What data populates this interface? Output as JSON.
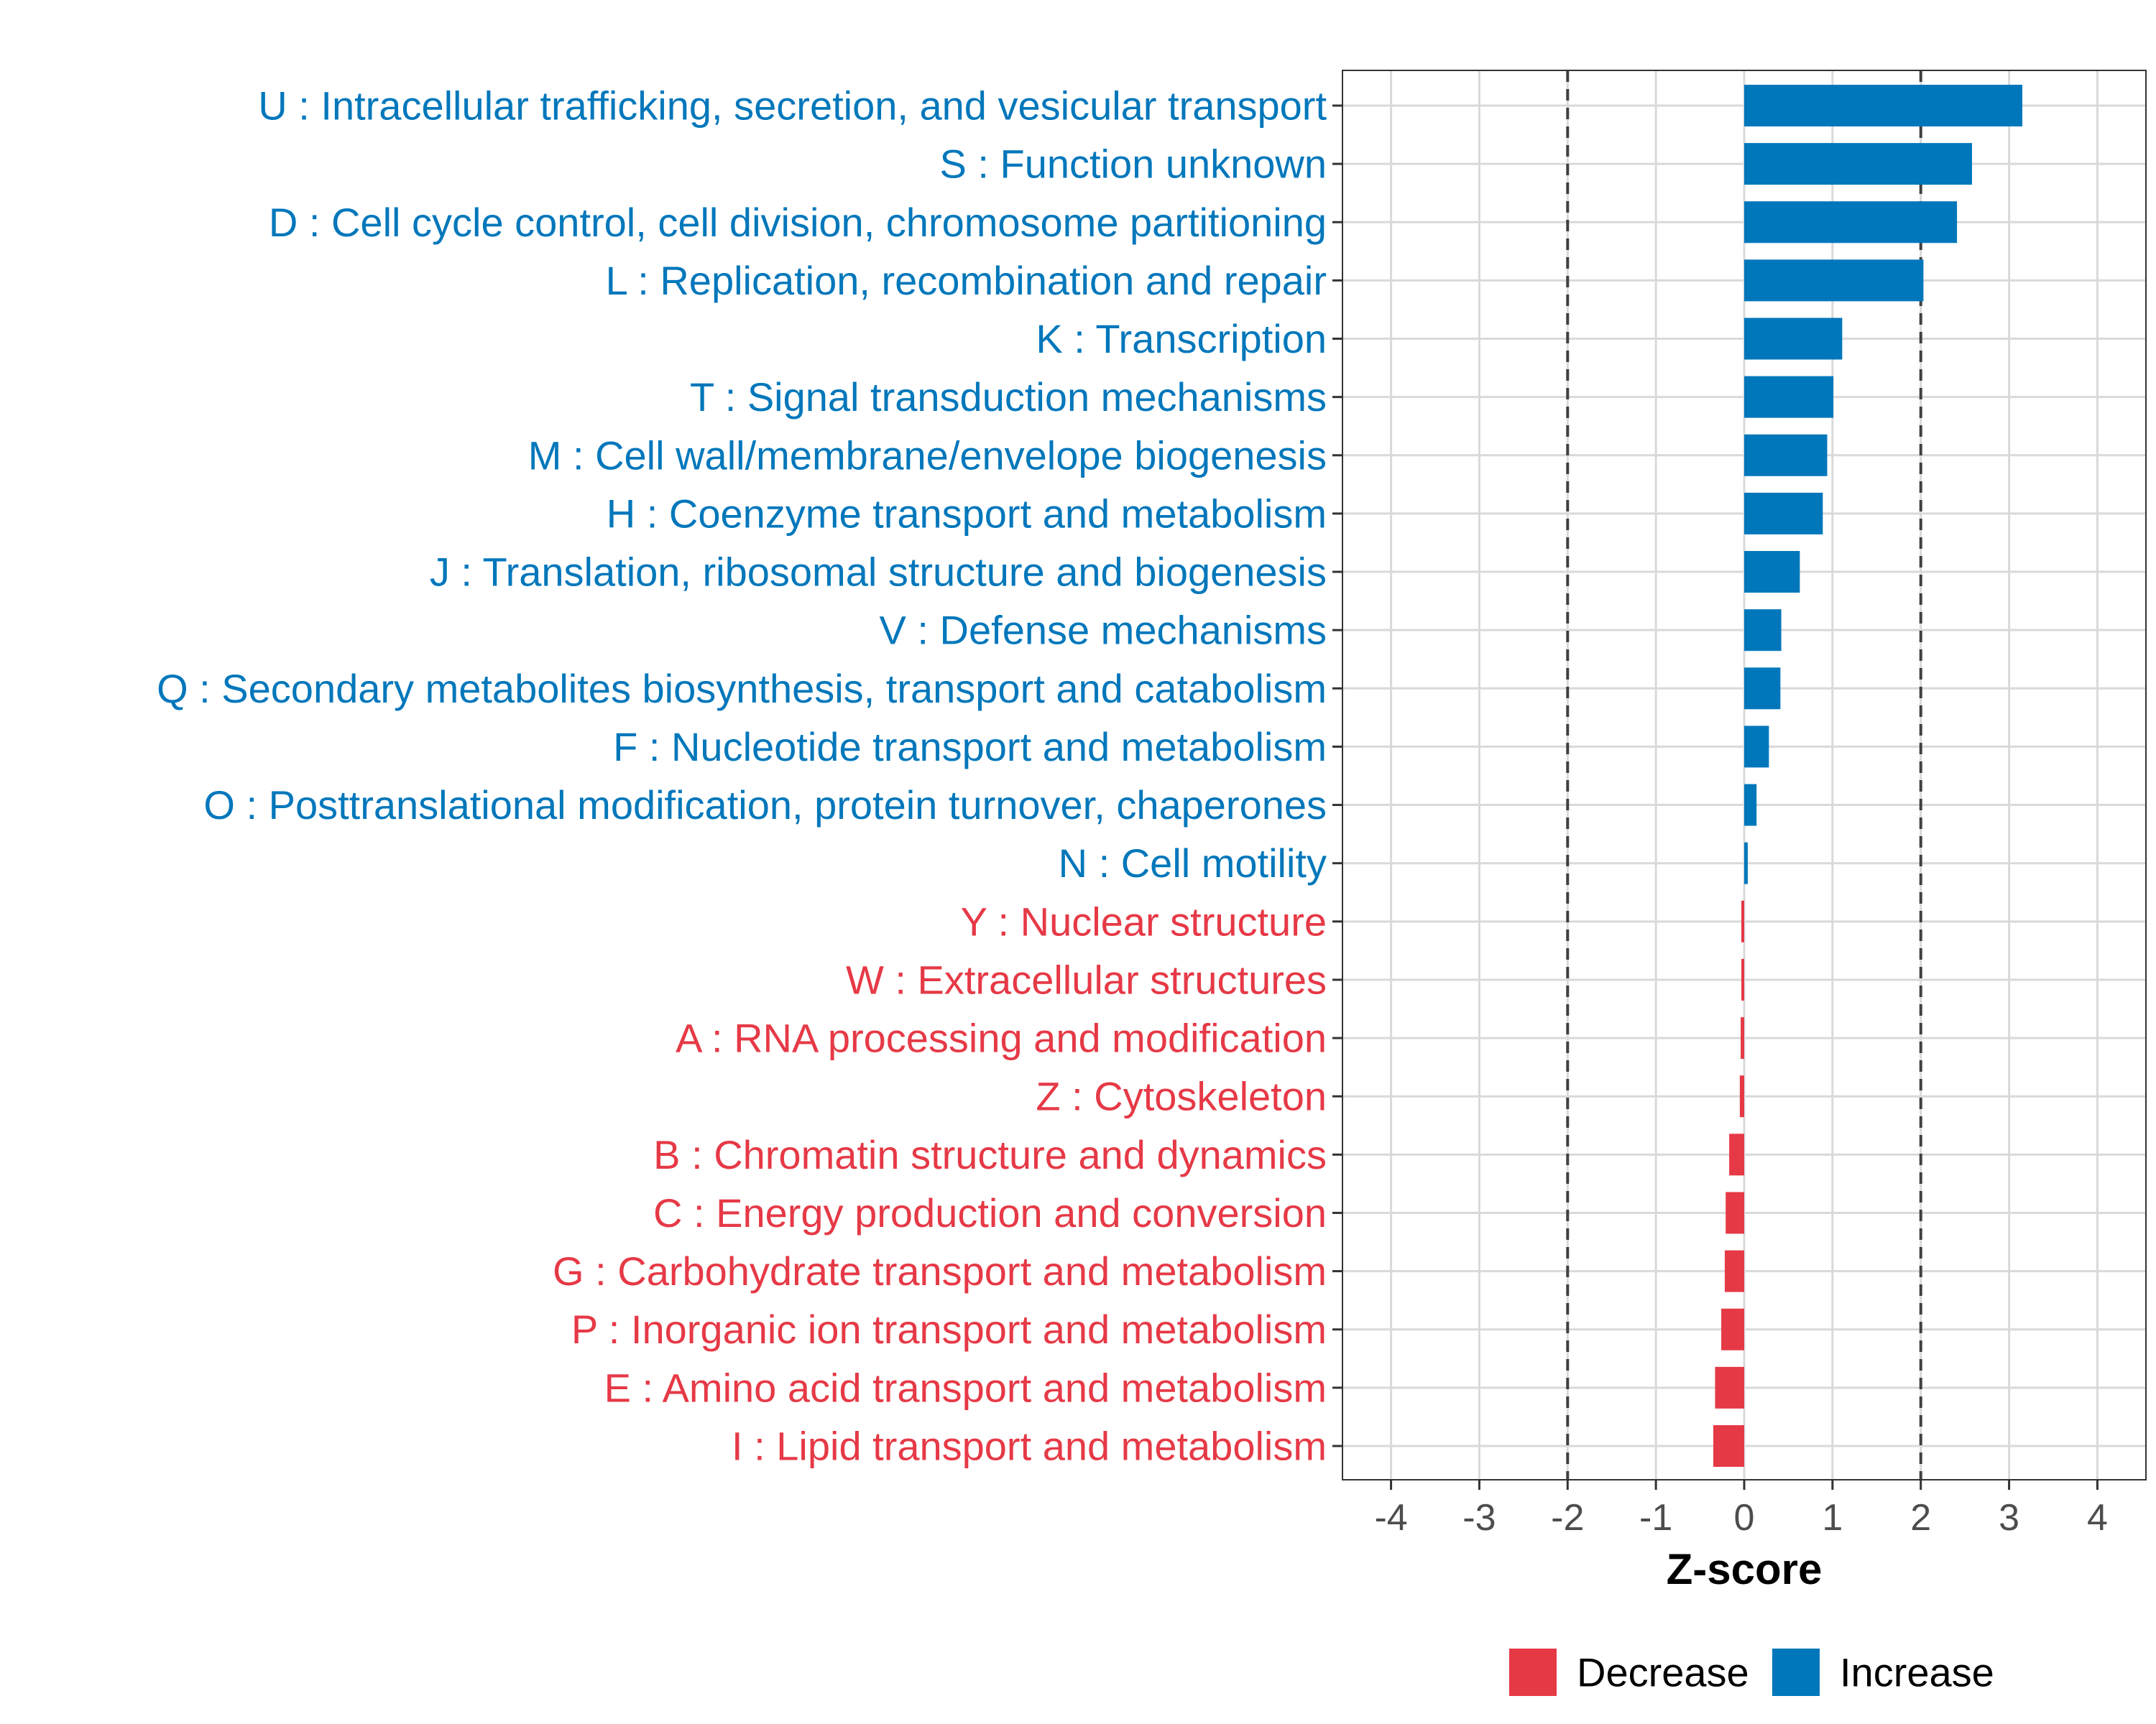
{
  "colors": {
    "increase": "#0077BB",
    "decrease": "#E63946",
    "grid": "#D9D9D9",
    "axis": "#333333",
    "tick_text": "#4D4D4D",
    "reference_line": "#404040"
  },
  "chart_data": {
    "type": "bar",
    "orientation": "horizontal",
    "title": "",
    "xlabel": "Z-score",
    "ylabel": "",
    "xlim": [
      -4.55,
      4.55
    ],
    "x_ticks": [
      -4,
      -3,
      -2,
      -1,
      0,
      1,
      2,
      3,
      4
    ],
    "grid": true,
    "reference_lines": [
      -2,
      2
    ],
    "legend": {
      "position": "bottom",
      "entries": [
        {
          "label": "Decrease",
          "color_key": "decrease"
        },
        {
          "label": "Increase",
          "color_key": "increase"
        }
      ]
    },
    "categories": [
      "U : Intracellular trafficking, secretion, and vesicular transport",
      "S : Function unknown",
      "D : Cell cycle control, cell division, chromosome partitioning",
      "L : Replication, recombination and repair",
      "K : Transcription",
      "T : Signal transduction mechanisms",
      "M : Cell wall/membrane/envelope biogenesis",
      "H : Coenzyme transport and metabolism",
      "J : Translation, ribosomal structure and biogenesis",
      "V : Defense mechanisms",
      "Q : Secondary metabolites biosynthesis, transport and catabolism",
      "F : Nucleotide transport and metabolism",
      "O : Posttranslational modification, protein turnover, chaperones",
      "N : Cell motility",
      "Y : Nuclear structure",
      "W : Extracellular structures",
      "A : RNA processing and modification",
      "Z : Cytoskeleton",
      "B : Chromatin structure and dynamics",
      "C : Energy production and conversion",
      "G : Carbohydrate transport and metabolism",
      "P : Inorganic ion transport and metabolism",
      "E : Amino acid transport and metabolism",
      "I : Lipid transport and metabolism"
    ],
    "values": [
      3.15,
      2.58,
      2.41,
      2.03,
      1.11,
      1.01,
      0.94,
      0.89,
      0.63,
      0.42,
      0.41,
      0.28,
      0.14,
      0.04,
      -0.02,
      -0.03,
      -0.04,
      -0.05,
      -0.17,
      -0.21,
      -0.22,
      -0.26,
      -0.33,
      -0.35
    ],
    "direction": [
      "Increase",
      "Increase",
      "Increase",
      "Increase",
      "Increase",
      "Increase",
      "Increase",
      "Increase",
      "Increase",
      "Increase",
      "Increase",
      "Increase",
      "Increase",
      "Increase",
      "Decrease",
      "Decrease",
      "Decrease",
      "Decrease",
      "Decrease",
      "Decrease",
      "Decrease",
      "Decrease",
      "Decrease",
      "Decrease"
    ]
  }
}
